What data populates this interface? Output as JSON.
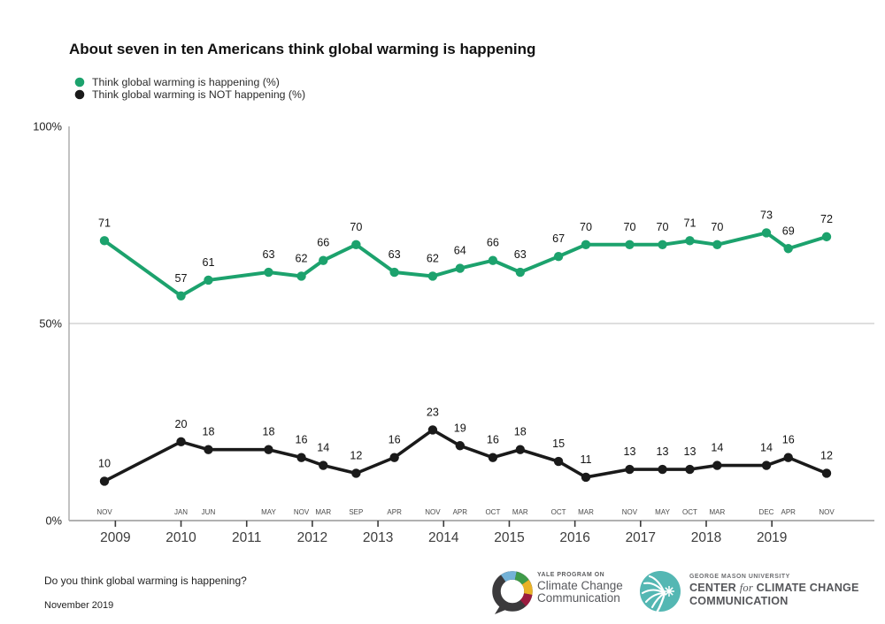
{
  "page": {
    "title": "About seven in ten Americans think global warming is happening"
  },
  "legend": {
    "items": [
      {
        "label": "Think global warming is happening (%)",
        "color": "#1ca26d"
      },
      {
        "label": "Think global warming is NOT happening (%)",
        "color": "#1a1a1a"
      }
    ]
  },
  "footer": {
    "question": "Do you think global warming is happening?",
    "date": "November 2019"
  },
  "logos": {
    "yale": {
      "eyebrow": "YALE PROGRAM ON",
      "line1": "Climate Change",
      "line2": "Communication",
      "ring_color": "#3b3a3c",
      "segment_colors": [
        "#74b2d7",
        "#3f9b49",
        "#e9b227",
        "#9b1b3f"
      ]
    },
    "gmu": {
      "eyebrow": "GEORGE MASON UNIVERSITY",
      "line1_pre": "CENTER ",
      "line1_italic": "for",
      "line1_post": " CLIMATE CHANGE",
      "line2": "COMMUNICATION",
      "circle_color": "#54b7b3"
    }
  },
  "chart_data": {
    "type": "line",
    "title": "About seven in ten Americans think global warming is happening",
    "x_tick_labels": [
      "NOV",
      "JAN",
      "JUN",
      "MAY",
      "NOV",
      "MAR",
      "SEP",
      "APR",
      "NOV",
      "APR",
      "OCT",
      "MAR",
      "OCT",
      "MAR",
      "NOV",
      "MAY",
      "OCT",
      "MAR",
      "DEC",
      "APR",
      "NOV"
    ],
    "x_month_positions": [
      0,
      14,
      19,
      30,
      36,
      40,
      46,
      53,
      60,
      65,
      71,
      76,
      83,
      88,
      96,
      102,
      107,
      112,
      121,
      125,
      132
    ],
    "year_labels": [
      "2009",
      "2010",
      "2011",
      "2012",
      "2013",
      "2014",
      "2015",
      "2016",
      "2017",
      "2018",
      "2019"
    ],
    "year_month_positions": [
      2,
      14,
      26,
      38,
      50,
      62,
      74,
      86,
      98,
      110,
      122
    ],
    "y_axis": {
      "ticks": [
        {
          "label": "0%",
          "value": 0
        },
        {
          "label": "50%",
          "value": 50
        },
        {
          "label": "100%",
          "value": 100
        }
      ],
      "range": [
        0,
        100
      ],
      "gridline_at": 50
    },
    "legend_position": "top-left",
    "series": [
      {
        "name": "Think global warming is happening (%)",
        "color": "#1ca26d",
        "values": [
          71,
          57,
          61,
          63,
          62,
          66,
          70,
          63,
          62,
          64,
          66,
          63,
          67,
          70,
          70,
          70,
          71,
          70,
          73,
          69,
          72
        ]
      },
      {
        "name": "Think global warming is NOT happening (%)",
        "color": "#1a1a1a",
        "values": [
          10,
          20,
          18,
          18,
          16,
          14,
          12,
          16,
          23,
          19,
          16,
          18,
          15,
          11,
          13,
          13,
          13,
          14,
          14,
          16,
          12
        ]
      }
    ]
  }
}
